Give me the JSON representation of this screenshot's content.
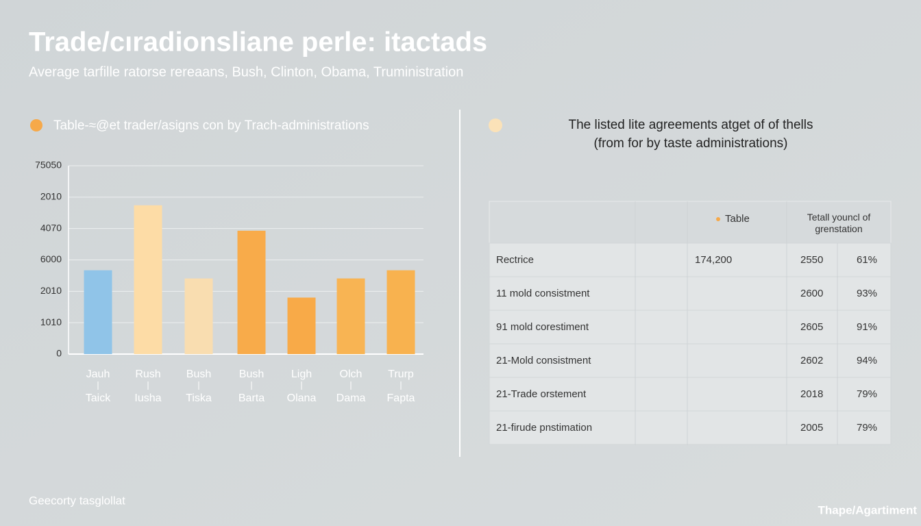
{
  "header": {
    "title": "Trade/cıradionsliane perle: itactads",
    "subtitle": "Average tarfille ratorse rereaans, Bush, Clinton, Obama, Truministration"
  },
  "chart_data": {
    "type": "bar",
    "legend": "Table-≈@et trader/asigns con by Trach-administrations",
    "categories": [
      "Jauh",
      "Rush",
      "Bush",
      "Bush",
      "Ligh",
      "Olch",
      "Trurp"
    ],
    "category_sublabels": [
      "Taick",
      "Iusha",
      "Tiska",
      "Barta",
      "Olana",
      "Dama",
      "Fapta"
    ],
    "values": [
      2.67,
      4.74,
      2.41,
      3.93,
      1.8,
      2.41,
      2.67
    ],
    "colors": [
      "#90c4e8",
      "#fddca6",
      "#f9ddb0",
      "#f8ab4a",
      "#f8aa48",
      "#f8b453",
      "#f8b24f"
    ],
    "ylim": [
      0,
      6
    ],
    "yticks": [
      0,
      1,
      2,
      3,
      4,
      5,
      6
    ],
    "ytick_labels": [
      "0",
      "1010",
      "2010",
      "6000",
      "4070",
      "2010",
      "75050"
    ],
    "grid": true
  },
  "table": {
    "title": "The listed lite agreements atget of of thells",
    "title_line2": "(from for by taste administrations)",
    "header_amount": "Table",
    "header_share": "Tetall youncl of grenstation",
    "rows": [
      {
        "name": "Rectrice",
        "amount": "174,200",
        "year": "2550",
        "share": "61%"
      },
      {
        "name": "11 mold consistment",
        "year": "2600",
        "share": "93%"
      },
      {
        "name": "91 mold corestiment",
        "year": "2605",
        "share": "91%"
      },
      {
        "name": "21-Mold consistment",
        "year": "2602",
        "share": "94%"
      },
      {
        "name": "21-Trade orstement",
        "year": "2018",
        "share": "79%"
      },
      {
        "name": "21-firude pnstimation",
        "year": "2005",
        "share": "79%"
      }
    ]
  },
  "footer": {
    "left": "Geecorty tasglollat",
    "right": "Thape/Agartiment"
  }
}
